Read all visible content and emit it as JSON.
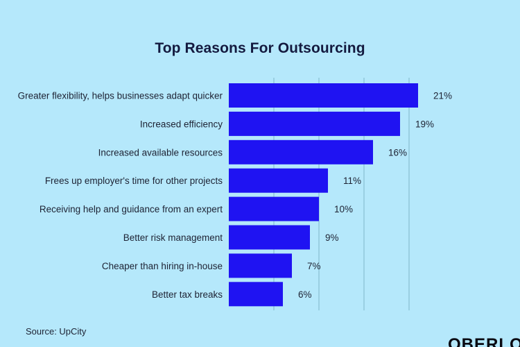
{
  "chart_data": {
    "type": "bar",
    "orientation": "horizontal",
    "title": "Top Reasons For Outsourcing",
    "categories": [
      "Greater flexibility, helps businesses adapt quicker",
      "Increased efficiency",
      "Increased available resources",
      "Frees up employer's time for other projects",
      "Receiving help and guidance from an expert",
      "Better risk management",
      "Cheaper than hiring in-house",
      "Better tax breaks"
    ],
    "values": [
      21,
      19,
      16,
      11,
      10,
      9,
      7,
      6
    ],
    "value_labels": [
      "21%",
      "19%",
      "16%",
      "11%",
      "10%",
      "9%",
      "7%",
      "6%"
    ],
    "xlim": [
      0,
      25
    ],
    "grid": true,
    "legend": "none",
    "colors": {
      "bar": "#1f13f2",
      "background": "#b5e8fb",
      "gridline": "#7fb6c9",
      "text": "#1d2233"
    }
  },
  "footer": {
    "source": "Source: UpCity",
    "brand": "OBERLO"
  }
}
